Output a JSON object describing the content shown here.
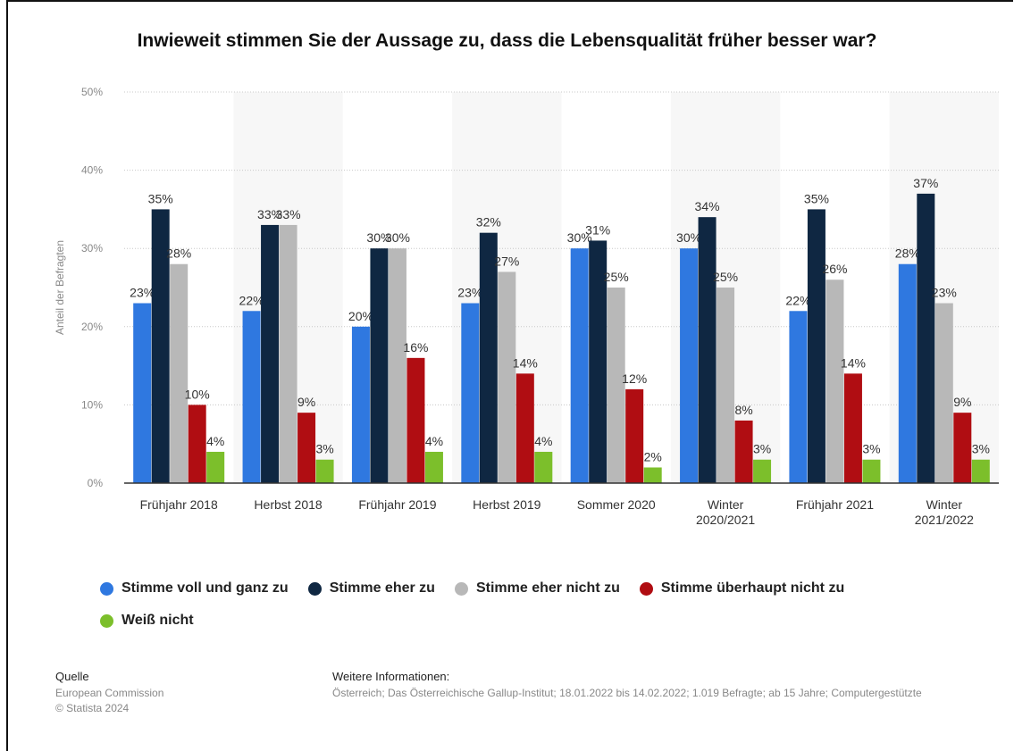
{
  "chart_data": {
    "type": "bar",
    "title": "Inwieweit stimmen Sie der Aussage zu, dass die Lebensqualität früher besser war?",
    "ylabel": "Anteil der Befragten",
    "xlabel": "",
    "ylim": [
      0,
      50
    ],
    "yticks": [
      "0%",
      "10%",
      "20%",
      "30%",
      "40%",
      "50%"
    ],
    "grid": true,
    "legend_position": "bottom",
    "categories": [
      [
        "Frühjahr 2018"
      ],
      [
        "Herbst 2018"
      ],
      [
        "Frühjahr 2019"
      ],
      [
        "Herbst 2019"
      ],
      [
        "Sommer 2020"
      ],
      [
        "Winter",
        "2020/2021"
      ],
      [
        "Frühjahr 2021"
      ],
      [
        "Winter",
        "2021/2022"
      ]
    ],
    "series": [
      {
        "name": "Stimme voll und ganz zu",
        "color": "#2f78e0",
        "values": [
          23,
          22,
          20,
          23,
          30,
          30,
          22,
          28
        ]
      },
      {
        "name": "Stimme eher zu",
        "color": "#0f2742",
        "values": [
          35,
          33,
          30,
          32,
          31,
          34,
          35,
          37
        ]
      },
      {
        "name": "Stimme eher nicht zu",
        "color": "#b8b8b8",
        "values": [
          28,
          33,
          30,
          27,
          25,
          25,
          26,
          23
        ]
      },
      {
        "name": "Stimme überhaupt nicht zu",
        "color": "#b00d12",
        "values": [
          10,
          9,
          16,
          14,
          12,
          8,
          14,
          9
        ]
      },
      {
        "name": "Weiß nicht",
        "color": "#7cbf2b",
        "values": [
          4,
          3,
          4,
          4,
          2,
          3,
          3,
          3
        ]
      }
    ],
    "value_suffix": "%"
  },
  "footer": {
    "source_heading": "Quelle",
    "source_lines": [
      "European Commission",
      "© Statista 2024"
    ],
    "info_heading": "Weitere Informationen:",
    "info_line": "Österreich; Das Österreichische Gallup-Institut; 18.01.2022 bis 14.02.2022; 1.019 Befragte; ab 15 Jahre; Computergestützte"
  }
}
